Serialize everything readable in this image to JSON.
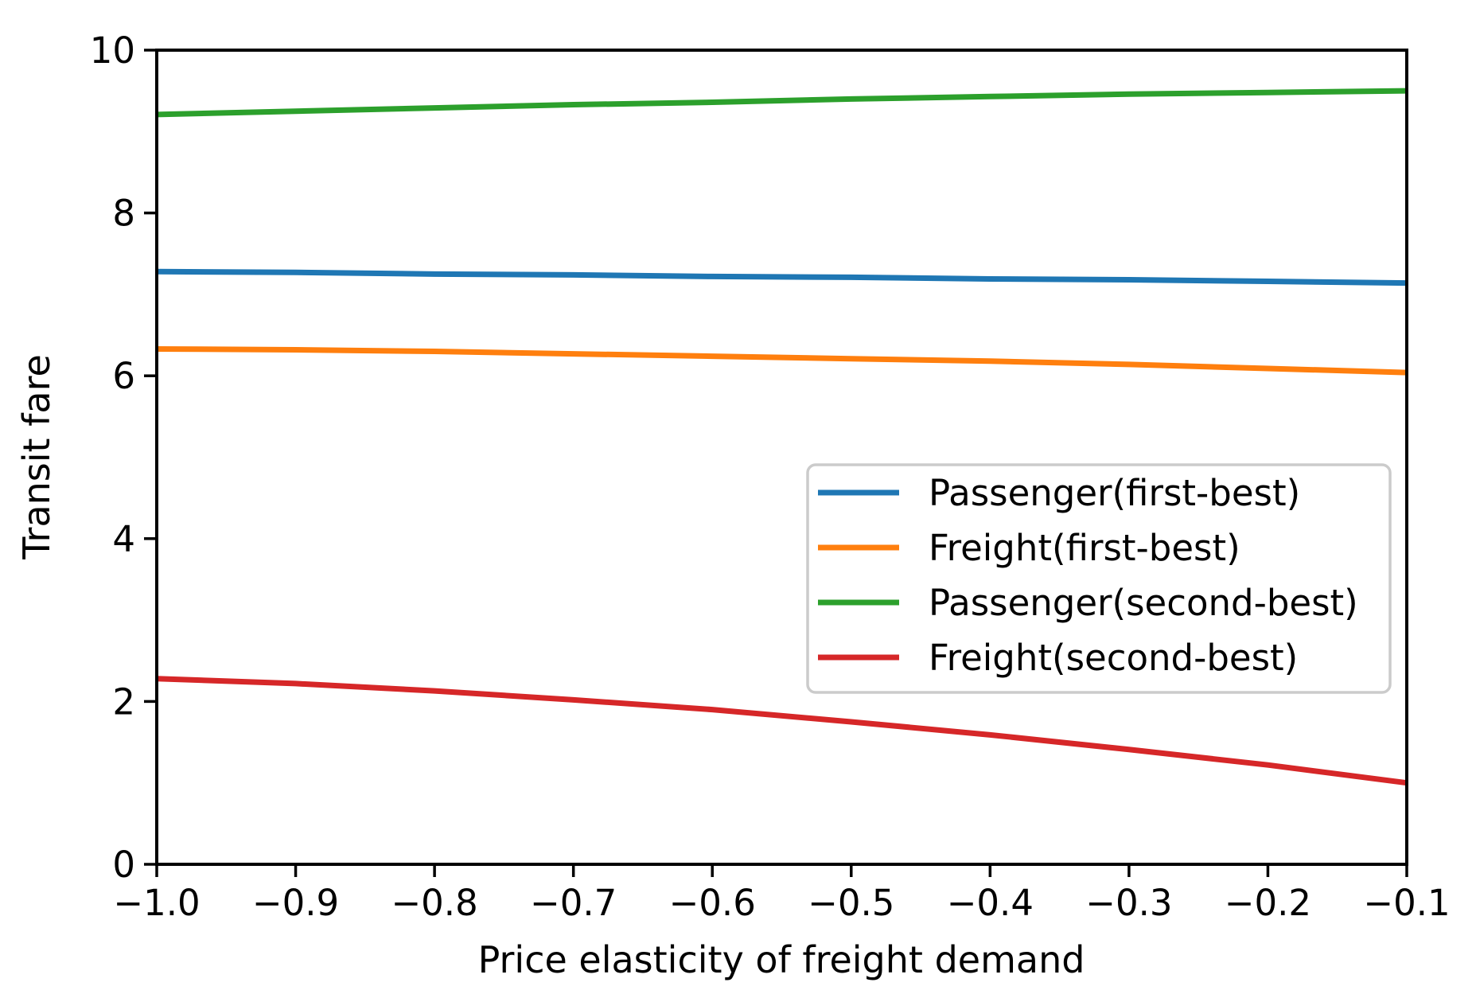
{
  "figure": {
    "background": "#ffffff"
  },
  "chart_data": {
    "type": "line",
    "title": "",
    "xlabel": "Price elasticity of freight demand",
    "ylabel": "Transit fare",
    "xlim": [
      -1.0,
      -0.1
    ],
    "ylim": [
      0,
      10
    ],
    "grid": false,
    "legend_position": "center-right",
    "axis_color": "#000000",
    "legend_border_color": "#cbcbcb",
    "legend_background": "#ffffff",
    "x": [
      -1.0,
      -0.9,
      -0.8,
      -0.7,
      -0.6,
      -0.5,
      -0.4,
      -0.3,
      -0.2,
      -0.1
    ],
    "x_tick_labels": [
      "−1.0",
      "−0.9",
      "−0.8",
      "−0.7",
      "−0.6",
      "−0.5",
      "−0.4",
      "−0.3",
      "−0.2",
      "−0.1"
    ],
    "y_ticks": [
      0,
      2,
      4,
      6,
      8,
      10
    ],
    "y_tick_labels": [
      "0",
      "2",
      "4",
      "6",
      "8",
      "10"
    ],
    "series": [
      {
        "name": "Passenger(first-best)",
        "color": "#1f77b4",
        "values": [
          7.28,
          7.27,
          7.25,
          7.24,
          7.22,
          7.21,
          7.19,
          7.18,
          7.16,
          7.14
        ]
      },
      {
        "name": "Freight(first-best)",
        "color": "#ff7f0e",
        "values": [
          6.33,
          6.32,
          6.3,
          6.27,
          6.24,
          6.21,
          6.18,
          6.14,
          6.09,
          6.04
        ]
      },
      {
        "name": "Passenger(second-best)",
        "color": "#2ca02c",
        "values": [
          9.21,
          9.25,
          9.29,
          9.33,
          9.36,
          9.4,
          9.43,
          9.46,
          9.48,
          9.5
        ]
      },
      {
        "name": "Freight(second-best)",
        "color": "#d62728",
        "values": [
          2.28,
          2.22,
          2.13,
          2.02,
          1.9,
          1.75,
          1.59,
          1.41,
          1.22,
          1.0
        ]
      }
    ]
  }
}
